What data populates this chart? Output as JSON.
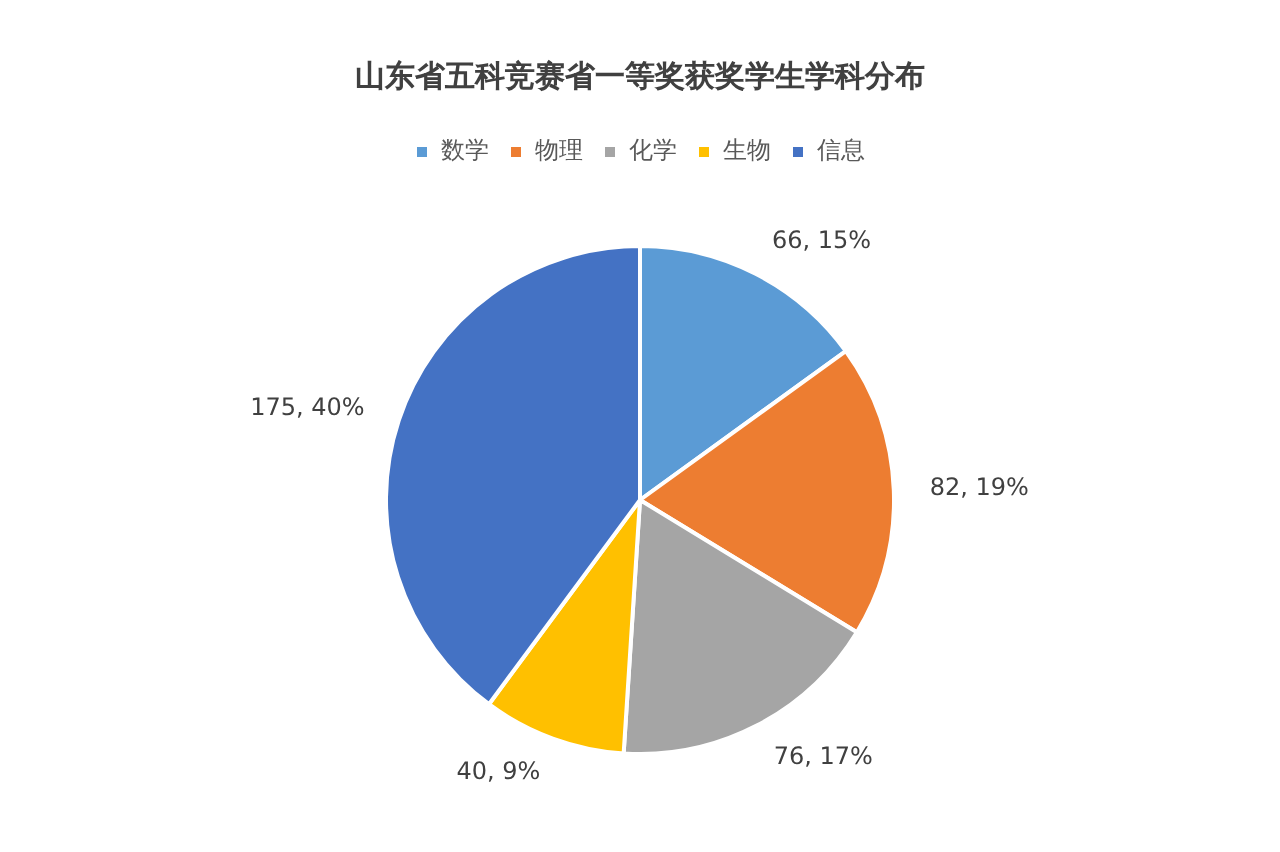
{
  "chart_data": {
    "type": "pie",
    "title": "山东省五科竞赛省一等奖获奖学生学科分布",
    "categories": [
      "数学",
      "物理",
      "化学",
      "生物",
      "信息"
    ],
    "values": [
      66,
      82,
      76,
      40,
      175
    ],
    "colors": [
      "#5b9bd5",
      "#ed7d31",
      "#a5a5a5",
      "#ffc000",
      "#4472c4"
    ],
    "value_labels": [
      "66, 15%",
      "82, 19%",
      "76, 17%",
      "40, 9%",
      "175, 40%"
    ],
    "legend": "top"
  }
}
